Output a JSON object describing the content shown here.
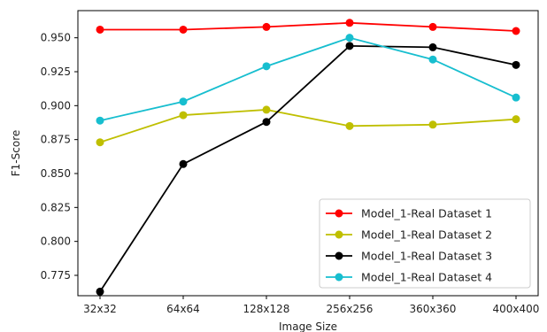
{
  "chart_data": {
    "type": "line",
    "title": "",
    "xlabel": "Image Size",
    "ylabel": "F1-Score",
    "categories": [
      "32x32",
      "64x64",
      "128x128",
      "256x256",
      "360x360",
      "400x400"
    ],
    "ylim": [
      0.76,
      0.97
    ],
    "yticks": [
      "0.775",
      "0.800",
      "0.825",
      "0.850",
      "0.875",
      "0.900",
      "0.925",
      "0.950"
    ],
    "grid": false,
    "legend_position": "bottom-right",
    "series": [
      {
        "name": "Model_1-Real Dataset 1",
        "color": "#ff0000",
        "values": [
          0.956,
          0.956,
          0.958,
          0.961,
          0.958,
          0.955
        ]
      },
      {
        "name": "Model_1-Real Dataset 2",
        "color": "#bfbf00",
        "values": [
          0.873,
          0.893,
          0.897,
          0.885,
          0.886,
          0.89
        ]
      },
      {
        "name": "Model_1-Real Dataset 3",
        "color": "#000000",
        "values": [
          0.763,
          0.857,
          0.888,
          0.944,
          0.943,
          0.93
        ]
      },
      {
        "name": "Model_1-Real Dataset 4",
        "color": "#17becf",
        "values": [
          0.889,
          0.903,
          0.929,
          0.95,
          0.934,
          0.906
        ]
      }
    ]
  }
}
